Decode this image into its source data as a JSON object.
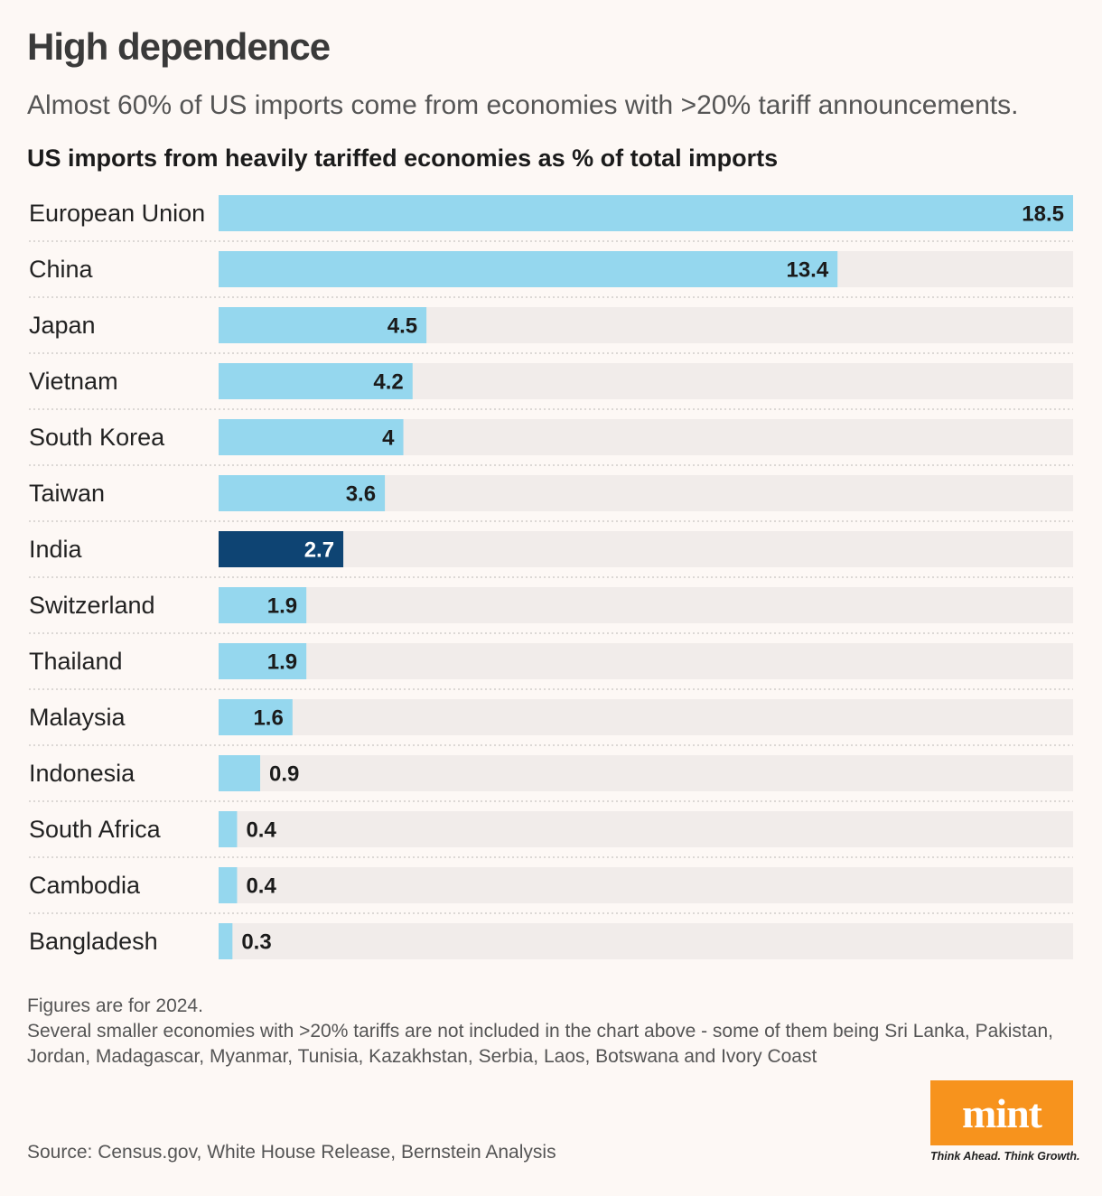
{
  "header": {
    "title": "High dependence",
    "subtitle": "Almost 60% of US imports come from economies with >20% tariff announcements.",
    "chart_heading": "US imports from heavily tariffed economies as % of total imports"
  },
  "chart_data": {
    "type": "bar",
    "orientation": "horizontal",
    "title": "US imports from heavily tariffed economies as % of total imports",
    "categories": [
      "European Union",
      "China",
      "Japan",
      "Vietnam",
      "South Korea",
      "Taiwan",
      "India",
      "Switzerland",
      "Thailand",
      "Malaysia",
      "Indonesia",
      "South Africa",
      "Cambodia",
      "Bangladesh"
    ],
    "values": [
      18.5,
      13.4,
      4.5,
      4.2,
      4,
      3.6,
      2.7,
      1.9,
      1.9,
      1.6,
      0.9,
      0.4,
      0.4,
      0.3
    ],
    "value_labels": [
      "18.5",
      "13.4",
      "4.5",
      "4.2",
      "4",
      "3.6",
      "2.7",
      "1.9",
      "1.9",
      "1.6",
      "0.9",
      "0.4",
      "0.4",
      "0.3"
    ],
    "highlight": "India",
    "xlim": [
      0,
      18.5
    ],
    "xlabel": "",
    "ylabel": "",
    "grid": false,
    "colors": {
      "bar": "#95d7ee",
      "highlight": "#0e4473",
      "track": "#f1ecea",
      "separator": "#c9c4c2"
    }
  },
  "notes": {
    "line1": "Figures are for 2024.",
    "line2": "Several smaller economies with >20% tariffs are not included in the chart above - some of them being Sri Lanka, Pakistan, Jordan, Madagascar, Myanmar, Tunisia, Kazakhstan, Serbia, Laos, Botswana and Ivory Coast"
  },
  "source": "Source: Census.gov, White House Release, Bernstein Analysis",
  "brand": {
    "logo_text": "mint",
    "tagline": "Think Ahead. Think Growth.",
    "color": "#f7931d"
  }
}
